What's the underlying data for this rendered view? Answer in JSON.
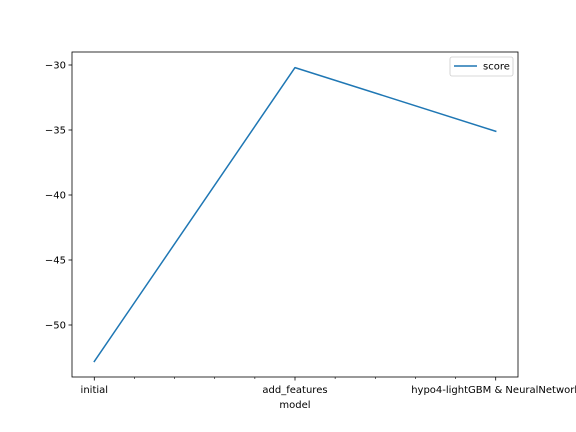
{
  "chart_data": {
    "type": "line",
    "categories": [
      "initial",
      "add_features",
      "hypo4-lightGBM & NeuralNetwork"
    ],
    "series": [
      {
        "name": "score",
        "color": "#1f77b4",
        "values": [
          -52.8,
          -30.2,
          -35.1
        ]
      }
    ],
    "xlabel": "model",
    "ylabel": "",
    "ylim": [
      -54.0,
      -29.0
    ],
    "yticks": [
      -50,
      -45,
      -40,
      -35,
      -30
    ],
    "ytick_labels": [
      "−50",
      "−45",
      "−40",
      "−35",
      "−30"
    ],
    "xtick_labels": [
      "initial",
      "add_features",
      "hypo4-lightGBM & NeuralNetwork"
    ],
    "minor_xticks": 4,
    "grid": false,
    "legend": "top-right"
  }
}
